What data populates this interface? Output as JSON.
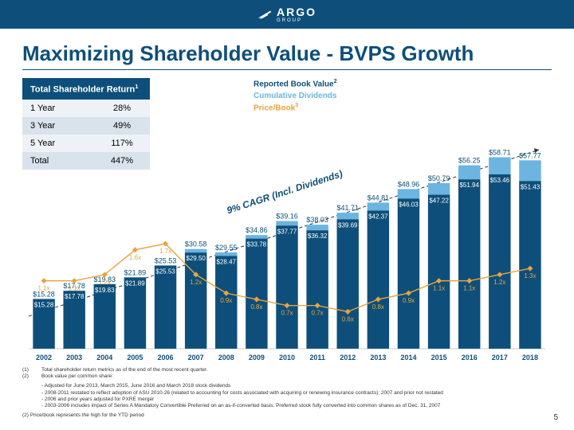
{
  "header": {
    "brand": "ARGO",
    "sub": "GROUP"
  },
  "title": "Maximizing Shareholder Value - BVPS Growth",
  "tsr_table": {
    "header": "Total Shareholder Return",
    "header_sup": "1",
    "rows": [
      {
        "label": "1 Year",
        "value": "28%"
      },
      {
        "label": "3 Year",
        "value": "49%"
      },
      {
        "label": "5 Year",
        "value": "117%"
      },
      {
        "label": "Total",
        "value": "447%"
      }
    ]
  },
  "legend": {
    "book": "Reported Book Value",
    "book_sup": "2",
    "dividends": "Cumulative Dividends",
    "pricebook": "Price/Book",
    "pricebook_sup": "3"
  },
  "chart": {
    "cagr_label": "9% CAGR (Incl. Dividends)",
    "colors": {
      "book": "#0d4f7a",
      "div": "#6bb5e0",
      "linePB": "#e8a33d",
      "marker": "#e8a33d"
    },
    "y_max": 62,
    "series": [
      {
        "year": "2002",
        "total": 15.28,
        "book": 15.28,
        "pb": 1.1,
        "pb_label": "1.1x"
      },
      {
        "year": "2003",
        "total": 17.78,
        "book": 17.78,
        "pb": 1.1,
        "pb_label": "1.1x"
      },
      {
        "year": "2004",
        "total": 19.83,
        "book": 19.83,
        "pb": 1.2,
        "pb_label": "1.2x"
      },
      {
        "year": "2005",
        "total": 21.89,
        "book": 21.89,
        "pb": 1.6,
        "pb_label": "1.6x"
      },
      {
        "year": "2006",
        "total": 25.53,
        "book": 25.53,
        "pb": 1.7,
        "pb_label": "1.7x"
      },
      {
        "year": "2007",
        "total": 30.58,
        "book": 29.5,
        "pb": 1.2,
        "pb_label": "1.2x"
      },
      {
        "year": "2008",
        "total": 29.55,
        "book": 28.47,
        "pb": 0.9,
        "pb_label": "0.9x"
      },
      {
        "year": "2009",
        "total": 34.86,
        "book": 33.78,
        "pb": 0.8,
        "pb_label": "0.8x"
      },
      {
        "year": "2010",
        "total": 39.16,
        "book": 37.77,
        "pb": 0.7,
        "pb_label": "0.7x"
      },
      {
        "year": "2011",
        "total": 38.03,
        "book": 36.32,
        "pb": 0.7,
        "pb_label": "0.7x"
      },
      {
        "year": "2012",
        "total": 41.71,
        "book": 39.69,
        "pb": 0.6,
        "pb_label": "0.6x"
      },
      {
        "year": "2013",
        "total": 44.81,
        "book": 42.37,
        "pb": 0.8,
        "pb_label": "0.8x"
      },
      {
        "year": "2014",
        "total": 48.96,
        "book": 46.03,
        "pb": 0.9,
        "pb_label": "0.9x"
      },
      {
        "year": "2015",
        "total": 50.79,
        "book": 47.22,
        "pb": 1.1,
        "pb_label": "1.1x"
      },
      {
        "year": "2016",
        "total": 56.25,
        "book": 51.94,
        "pb": 1.1,
        "pb_label": "1.1x"
      },
      {
        "year": "2017",
        "total": 58.71,
        "book": 53.46,
        "pb": 1.2,
        "pb_label": "1.2x"
      },
      {
        "year": "2018",
        "total": 57.77,
        "book": 51.43,
        "pb": 1.3,
        "pb_label": "1.3x"
      }
    ]
  },
  "footnotes": {
    "n1": "Total shareholder return metrics as of the end of the most recent quarter.",
    "n2": "Book value per common share:",
    "n2a": "- Adjusted for June 2013, March 2015, June 2016 and March 2018 stock dividends",
    "n2b": "- 2008-2011 restated to reflect adoption of ASU 2010-26 (related to accounting for costs associated with acquiring or renewing insurance contracts); 2007 and prior not restated",
    "n2c": "- 2006 and prior years adjusted for PXRE merger",
    "n2d": "- 2003-2006 includes impact of Series A Mandatory Convertible Preferred on an as-if-converted basis. Preferred stock fully converted into common shares as of Dec. 31, 2007",
    "extra": "(2) Price/book represents the high for the YTD period"
  },
  "page": "5"
}
